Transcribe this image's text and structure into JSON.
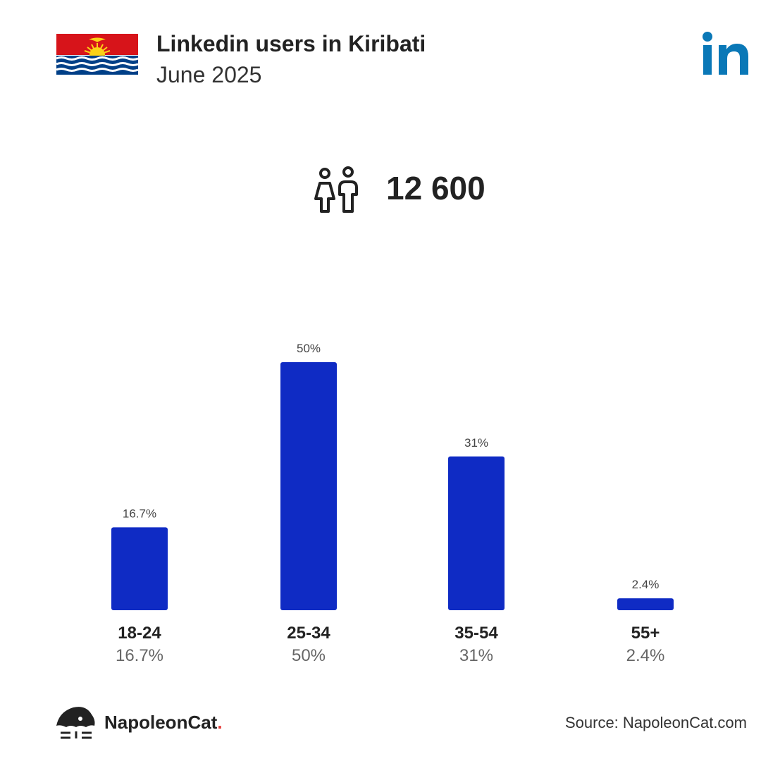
{
  "header": {
    "title": "Linkedin users in Kiribati",
    "subtitle": "June 2025"
  },
  "total": {
    "value": "12 600",
    "icon": "people-icon"
  },
  "colors": {
    "bar": "#0f2bc4",
    "linkedin": "#0a78b7",
    "text": "#222222",
    "muted": "#666666"
  },
  "chart_data": {
    "type": "bar",
    "categories": [
      "18-24",
      "25-34",
      "35-54",
      "55+"
    ],
    "values": [
      16.7,
      50,
      31,
      2.4
    ],
    "value_labels": [
      "16.7%",
      "50%",
      "31%",
      "2.4%"
    ],
    "ylim": [
      0,
      50
    ],
    "grid": false,
    "legend": "none"
  },
  "footer": {
    "brand": "NapoleonCat",
    "brand_dot": ".",
    "source": "Source: NapoleonCat.com"
  }
}
